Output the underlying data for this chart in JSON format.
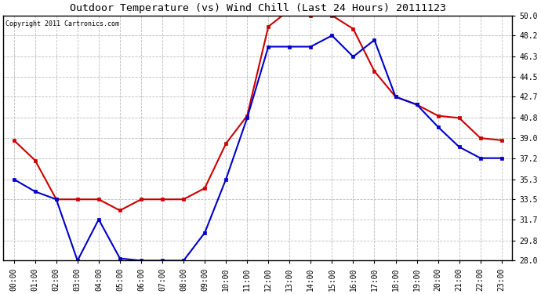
{
  "title": "Outdoor Temperature (vs) Wind Chill (Last 24 Hours) 20111123",
  "copyright": "Copyright 2011 Cartronics.com",
  "hours": [
    "00:00",
    "01:00",
    "02:00",
    "03:00",
    "04:00",
    "05:00",
    "06:00",
    "07:00",
    "08:00",
    "09:00",
    "10:00",
    "11:00",
    "12:00",
    "13:00",
    "14:00",
    "15:00",
    "16:00",
    "17:00",
    "18:00",
    "19:00",
    "20:00",
    "21:00",
    "22:00",
    "23:00"
  ],
  "red_temp": [
    38.8,
    37.0,
    33.5,
    33.5,
    33.5,
    32.5,
    33.5,
    33.5,
    33.5,
    34.5,
    38.5,
    41.0,
    49.0,
    50.5,
    50.0,
    50.0,
    48.8,
    45.0,
    42.7,
    42.0,
    41.0,
    40.8,
    39.0,
    38.8
  ],
  "blue_wc": [
    35.3,
    34.2,
    33.5,
    28.0,
    31.7,
    28.2,
    28.0,
    28.0,
    28.0,
    30.5,
    35.3,
    40.8,
    47.2,
    47.2,
    47.2,
    48.2,
    46.3,
    47.8,
    42.7,
    42.0,
    40.0,
    38.2,
    37.2,
    37.2
  ],
  "red_color": "#cc0000",
  "blue_color": "#0000cc",
  "bg_color": "#ffffff",
  "grid_color": "#bbbbbb",
  "ylim_min": 28.0,
  "ylim_max": 50.0,
  "yticks": [
    28.0,
    29.8,
    31.7,
    33.5,
    35.3,
    37.2,
    39.0,
    40.8,
    42.7,
    44.5,
    46.3,
    48.2,
    50.0
  ],
  "title_fontsize": 9.5,
  "tick_fontsize": 7,
  "copyright_fontsize": 6
}
